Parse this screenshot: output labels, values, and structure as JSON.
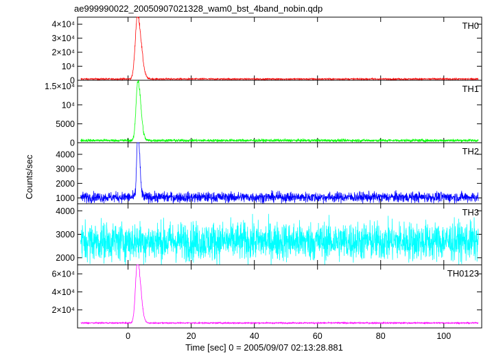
{
  "chart_data": {
    "type": "line",
    "title": "ae999990022_20050907021328_wam0_bst_4band_nobin.qdp",
    "xlabel": "Time [sec] 0 = 2005/09/07 02:13:28.881",
    "ylabel": "Counts/sec",
    "xlim": [
      -16,
      112
    ],
    "x_ticks": [
      0,
      20,
      40,
      60,
      80,
      100
    ],
    "x_tick_labels": [
      "0",
      "20",
      "40",
      "60",
      "80",
      "100"
    ],
    "grid": false,
    "colors": {
      "TH0": "#ff0000",
      "TH1": "#00ff00",
      "TH2": "#0000ff",
      "TH3": "#00ffff",
      "TH0123": "#ff00ff",
      "axes": "#000000",
      "background": "#ffffff"
    },
    "panels": [
      {
        "name": "TH0",
        "ylim": [
          0,
          45000
        ],
        "y_ticks": [
          0,
          10000,
          20000,
          30000,
          40000
        ],
        "y_tick_labels": [
          "0",
          "10⁴",
          "2×10⁴",
          "3×10⁴",
          "4×10⁴"
        ],
        "baseline": 900,
        "noise": 250,
        "peak": 46000,
        "peak_time": 3.0,
        "rise_width": 1.0,
        "decay_width": 1.6
      },
      {
        "name": "TH1",
        "ylim": [
          0,
          16500
        ],
        "y_ticks": [
          0,
          5000,
          10000,
          15000
        ],
        "y_tick_labels": [
          "0",
          "5000",
          "10⁴",
          "1.5×10⁴"
        ],
        "baseline": 600,
        "noise": 180,
        "peak": 16000,
        "peak_time": 3.1,
        "rise_width": 0.8,
        "decay_width": 1.3
      },
      {
        "name": "TH2",
        "ylim": [
          600,
          4800
        ],
        "y_ticks": [
          1000,
          2000,
          3000,
          4000
        ],
        "y_tick_labels": [
          "1000",
          "2000",
          "3000",
          "4000"
        ],
        "baseline": 1050,
        "noise": 180,
        "peak": 4700,
        "peak_time": 3.1,
        "rise_width": 0.5,
        "decay_width": 0.8
      },
      {
        "name": "TH3",
        "ylim": [
          1700,
          4300
        ],
        "y_ticks": [
          2000,
          3000,
          4000
        ],
        "y_tick_labels": [
          "2000",
          "3000",
          "4000"
        ],
        "baseline": 2700,
        "noise": 420,
        "peak": 0,
        "peak_time": 3.0,
        "rise_width": 1.0,
        "decay_width": 1.0
      },
      {
        "name": "TH0123",
        "ylim": [
          0,
          70000
        ],
        "y_ticks": [
          20000,
          40000,
          60000
        ],
        "y_tick_labels": [
          "2×10⁴",
          "4×10⁴",
          "6×10⁴"
        ],
        "baseline": 5500,
        "noise": 350,
        "peak": 69000,
        "peak_time": 3.0,
        "rise_width": 0.9,
        "decay_width": 1.4
      }
    ]
  }
}
